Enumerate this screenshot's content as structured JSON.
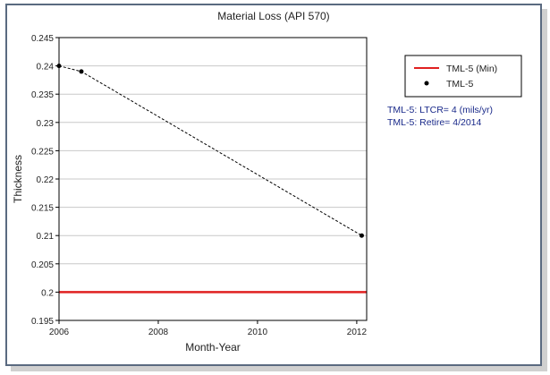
{
  "chart_data": {
    "type": "line",
    "title": "Material Loss (API 570)",
    "xlabel": "Month-Year",
    "ylabel": "Thickness",
    "xlim": [
      2006.0,
      2012.2
    ],
    "ylim": [
      0.195,
      0.245
    ],
    "x_ticks": [
      2006,
      2008,
      2010,
      2012
    ],
    "x_tick_labels": [
      "2006",
      "2008",
      "2010",
      "2012"
    ],
    "y_ticks": [
      0.195,
      0.2,
      0.205,
      0.21,
      0.215,
      0.22,
      0.225,
      0.23,
      0.235,
      0.24,
      0.245
    ],
    "y_tick_labels": [
      "0.195",
      "0.2",
      "0.205",
      "0.21",
      "0.215",
      "0.22",
      "0.225",
      "0.23",
      "0.235",
      "0.24",
      "0.245"
    ],
    "grid": "horizontal",
    "legend_position": "top-right",
    "series": [
      {
        "name": "TML-5 (Min)",
        "style": "solid-line",
        "color": "#e02020",
        "x": [
          2006.0,
          2012.2
        ],
        "y": [
          0.2,
          0.2
        ]
      },
      {
        "name": "TML-5",
        "style": "dashed-line-with-markers",
        "color": "#000000",
        "x": [
          2006.0,
          2006.45,
          2012.1
        ],
        "y": [
          0.24,
          0.239,
          0.21
        ]
      }
    ],
    "annotations": [
      "TML-5: LTCR= 4 (mils/yr)",
      "TML-5: Retire= 4/2014"
    ],
    "annotation_color": "#1a2a8a"
  }
}
